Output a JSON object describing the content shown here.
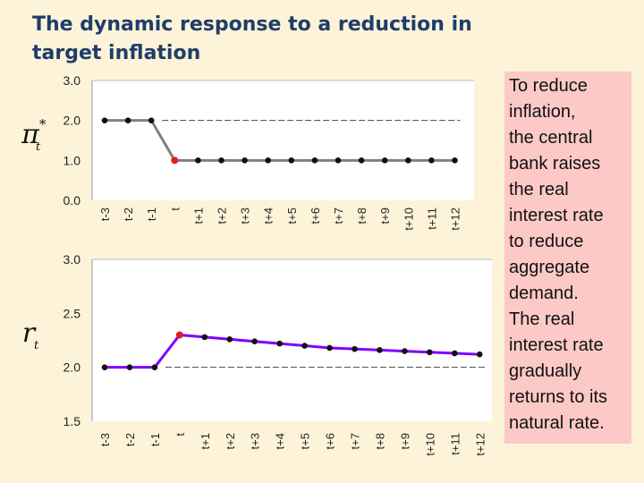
{
  "title": "The dynamic response to a reduction in target inflation",
  "note": "To reduce\ninflation,\nthe central\nbank raises\nthe real\ninterest rate\nto reduce\naggregate\ndemand.\nThe real\ninterest rate\ngradually\nreturns to its\nnatural rate.",
  "colors": {
    "background": "#fdf3d8",
    "note_bg": "#fcc9c6",
    "title": "#1f3d6b",
    "inflation_line": "#808080",
    "rate_line": "#8000ff",
    "highlight_point": "#e02020",
    "point": "#111111"
  },
  "chart_data": [
    {
      "type": "line",
      "ylabel": "π*t",
      "ylabel_main": "π",
      "ylabel_sup": "*",
      "ylabel_sub": "t",
      "categories": [
        "t-3",
        "t-2",
        "t-1",
        "t",
        "t+1",
        "t+2",
        "t+3",
        "t+4",
        "t+5",
        "t+6",
        "t+7",
        "t+8",
        "t+9",
        "t+10",
        "t+11",
        "t+12"
      ],
      "yticks": [
        "3.0",
        "2.0",
        "1.0",
        "0.0"
      ],
      "ylim": [
        0,
        3
      ],
      "grid": false,
      "series": [
        {
          "values": [
            2.0,
            2.0,
            2.0,
            null,
            1.0,
            1.0,
            1.0,
            1.0,
            1.0,
            1.0,
            1.0,
            1.0,
            1.0,
            1.0,
            1.0,
            1.0
          ],
          "color": "#808080"
        }
      ],
      "highlight": {
        "category": "t",
        "value": 1.0
      },
      "reference": {
        "value": 2.0,
        "style": "dashed"
      }
    },
    {
      "type": "line",
      "ylabel": "rt",
      "ylabel_main": "r",
      "ylabel_sub": "t",
      "categories": [
        "t-3",
        "t-2",
        "t-1",
        "t",
        "t+1",
        "t+2",
        "t+3",
        "t+4",
        "t+5",
        "t+6",
        "t+7",
        "t+8",
        "t+9",
        "t+10",
        "t+11",
        "t+12"
      ],
      "yticks": [
        "3.0",
        "2.5",
        "2.0",
        "1.5"
      ],
      "ylim": [
        1.5,
        3.0
      ],
      "grid": false,
      "series": [
        {
          "values": [
            2.0,
            2.0,
            2.0,
            null,
            2.28,
            2.26,
            2.24,
            2.22,
            2.2,
            2.18,
            2.17,
            2.16,
            2.15,
            2.14,
            2.13,
            2.12
          ],
          "color": "#8000ff"
        }
      ],
      "highlight": {
        "category": "t",
        "value": 2.3
      },
      "reference": {
        "value": 2.0,
        "style": "dashed"
      }
    }
  ]
}
